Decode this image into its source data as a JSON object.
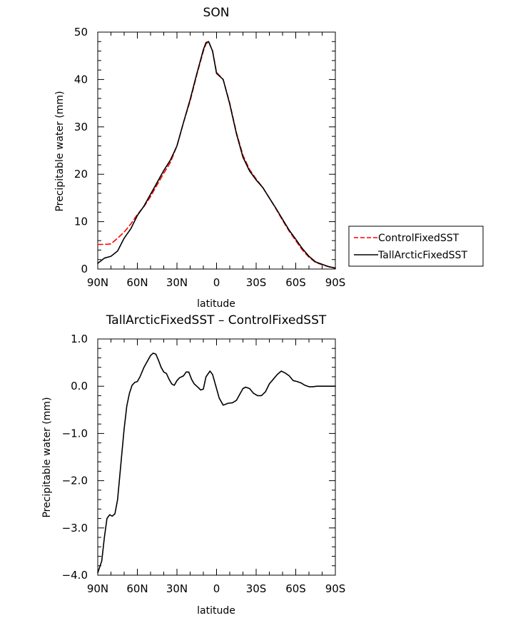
{
  "chart_data": [
    {
      "type": "line",
      "title": "SON",
      "xlabel": "latitude",
      "ylabel": "Precipitable water (mm)",
      "xlim": [
        90,
        -90
      ],
      "ylim": [
        0,
        50
      ],
      "x_ticks": [
        90,
        60,
        30,
        0,
        -30,
        -60,
        -90
      ],
      "x_tick_labels": [
        "90N",
        "60N",
        "30N",
        "0",
        "30S",
        "60S",
        "90S"
      ],
      "y_ticks": [
        0,
        10,
        20,
        30,
        40,
        50
      ],
      "y_tick_labels": [
        "0",
        "10",
        "20",
        "30",
        "40",
        "50"
      ],
      "grid": false,
      "legend_position": "right",
      "series": [
        {
          "name": "ControlFixedSST",
          "color": "#ff0000",
          "dash": "dashed",
          "x": [
            90,
            85,
            80,
            75,
            70,
            65,
            60,
            55,
            50,
            45,
            40,
            35,
            30,
            25,
            20,
            15,
            10,
            8,
            6,
            3,
            0,
            -5,
            -10,
            -15,
            -20,
            -25,
            -30,
            -35,
            -40,
            -45,
            -50,
            -55,
            -60,
            -65,
            -70,
            -75,
            -80,
            -85,
            -90
          ],
          "y": [
            5.2,
            5.2,
            5.3,
            6.5,
            7.8,
            9.5,
            11.5,
            13.2,
            15.3,
            17.8,
            20.2,
            22.5,
            26.0,
            31.0,
            35.5,
            41.0,
            46.0,
            47.5,
            48.0,
            46.0,
            41.5,
            40.0,
            35.0,
            28.8,
            24.0,
            21.0,
            19.0,
            17.2,
            15.0,
            12.7,
            10.3,
            8.0,
            6.0,
            4.0,
            2.5,
            1.4,
            0.9,
            0.5,
            0.2
          ]
        },
        {
          "name": "TallArcticFixedSST",
          "color": "#000000",
          "dash": "solid",
          "x": [
            90,
            85,
            80,
            75,
            70,
            65,
            60,
            55,
            50,
            45,
            40,
            35,
            30,
            25,
            20,
            15,
            10,
            8,
            6,
            3,
            0,
            -5,
            -10,
            -15,
            -20,
            -25,
            -30,
            -35,
            -40,
            -45,
            -50,
            -55,
            -60,
            -65,
            -70,
            -75,
            -80,
            -85,
            -90
          ],
          "y": [
            1.2,
            2.3,
            2.7,
            3.8,
            6.5,
            8.5,
            11.3,
            13.3,
            15.8,
            18.3,
            20.8,
            23.0,
            26.0,
            31.0,
            35.8,
            41.2,
            46.3,
            47.8,
            48.0,
            46.0,
            41.3,
            40.0,
            34.8,
            28.6,
            23.6,
            20.7,
            18.8,
            17.2,
            15.0,
            12.8,
            10.5,
            8.2,
            6.3,
            4.3,
            2.7,
            1.5,
            1.0,
            0.5,
            0.2
          ]
        }
      ]
    },
    {
      "type": "line",
      "title": "TallArcticFixedSST – ControlFixedSST",
      "xlabel": "latitude",
      "ylabel": "Precipitable water (mm)",
      "xlim": [
        90,
        -90
      ],
      "ylim": [
        -4.0,
        1.0
      ],
      "x_ticks": [
        90,
        60,
        30,
        0,
        -30,
        -60,
        -90
      ],
      "x_tick_labels": [
        "90N",
        "60N",
        "30N",
        "0",
        "30S",
        "60S",
        "90S"
      ],
      "y_ticks": [
        -4.0,
        -3.0,
        -2.0,
        -1.0,
        0.0,
        1.0
      ],
      "y_tick_labels": [
        "−4.0",
        "−3.0",
        "−2.0",
        "−1.0",
        "0.0",
        "1.0"
      ],
      "grid": false,
      "series": [
        {
          "color": "#000000",
          "dash": "solid",
          "x": [
            90,
            87,
            85,
            83,
            81,
            79,
            77,
            75,
            72,
            70,
            68,
            66,
            64,
            62,
            60,
            58,
            55,
            52,
            50,
            48,
            46,
            44,
            42,
            40,
            38,
            36,
            34,
            32,
            30,
            28,
            25,
            23,
            21,
            19,
            17,
            15,
            12,
            10,
            8,
            5,
            3,
            0,
            -2,
            -5,
            -7,
            -9,
            -12,
            -15,
            -18,
            -20,
            -22,
            -25,
            -28,
            -31,
            -34,
            -37,
            -40,
            -43,
            -46,
            -49,
            -52,
            -55,
            -58,
            -61,
            -64,
            -67,
            -70,
            -73,
            -76,
            -79,
            -82,
            -85,
            -88,
            -90
          ],
          "y": [
            -3.95,
            -3.7,
            -3.2,
            -2.8,
            -2.72,
            -2.75,
            -2.7,
            -2.4,
            -1.5,
            -0.9,
            -0.42,
            -0.15,
            0.02,
            0.08,
            0.1,
            0.2,
            0.4,
            0.55,
            0.65,
            0.7,
            0.68,
            0.55,
            0.4,
            0.3,
            0.27,
            0.15,
            0.05,
            0.02,
            0.12,
            0.18,
            0.22,
            0.3,
            0.3,
            0.15,
            0.05,
            0.0,
            -0.08,
            -0.06,
            0.2,
            0.32,
            0.25,
            -0.05,
            -0.25,
            -0.4,
            -0.38,
            -0.36,
            -0.35,
            -0.3,
            -0.15,
            -0.05,
            -0.02,
            -0.05,
            -0.15,
            -0.2,
            -0.2,
            -0.12,
            0.05,
            0.15,
            0.25,
            0.32,
            0.28,
            0.22,
            0.12,
            0.1,
            0.07,
            0.02,
            -0.01,
            -0.01,
            0.0,
            0.0,
            0.0,
            0.0,
            0.0,
            0.0
          ]
        }
      ]
    }
  ]
}
